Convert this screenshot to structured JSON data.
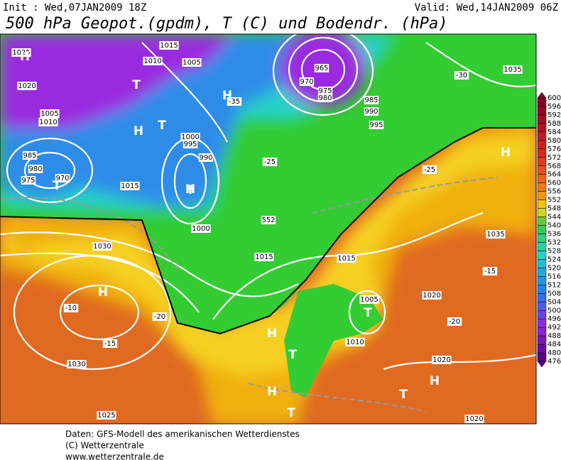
{
  "header": {
    "init": "Init : Wed,07JAN2009 18Z",
    "valid": "Valid: Wed,14JAN2009 06Z",
    "title": "500 hPa Geopot.(gpdm), T (C) und Bodendr. (hPa)"
  },
  "colorbar": {
    "labels": [
      600,
      596,
      592,
      588,
      584,
      580,
      576,
      572,
      568,
      564,
      560,
      556,
      552,
      548,
      544,
      540,
      536,
      532,
      528,
      524,
      520,
      516,
      512,
      508,
      504,
      500,
      496,
      492,
      488,
      484,
      480,
      476
    ]
  },
  "map": {
    "labels": [
      "1025",
      "1015",
      "1010",
      "1005",
      "1035",
      "H",
      "T",
      "H",
      "965",
      "970",
      "975",
      "980",
      "985",
      "990",
      "995",
      "-35",
      "-30",
      "1020",
      "H",
      "T",
      "1010",
      "1005",
      "1000",
      "995",
      "990",
      "985",
      "980",
      "975",
      "970",
      "T",
      "1015",
      "H",
      "T",
      "1000",
      "-25",
      "552",
      "1015",
      "1030",
      "H",
      "-10",
      "-15",
      "-20",
      "1030",
      "1025",
      "1020",
      "H",
      "T",
      "1005",
      "1010",
      "1015",
      "H",
      "T",
      "H",
      "T",
      "1020",
      "1020",
      "1035",
      "-15",
      "-20",
      "-25",
      "H",
      "T"
    ]
  },
  "footer": {
    "lines": [
      "Daten: GFS-Modell des amerikanischen Wetterdienstes",
      "(C) Wetterzentrale",
      "www.wetterzentrale.de"
    ]
  }
}
